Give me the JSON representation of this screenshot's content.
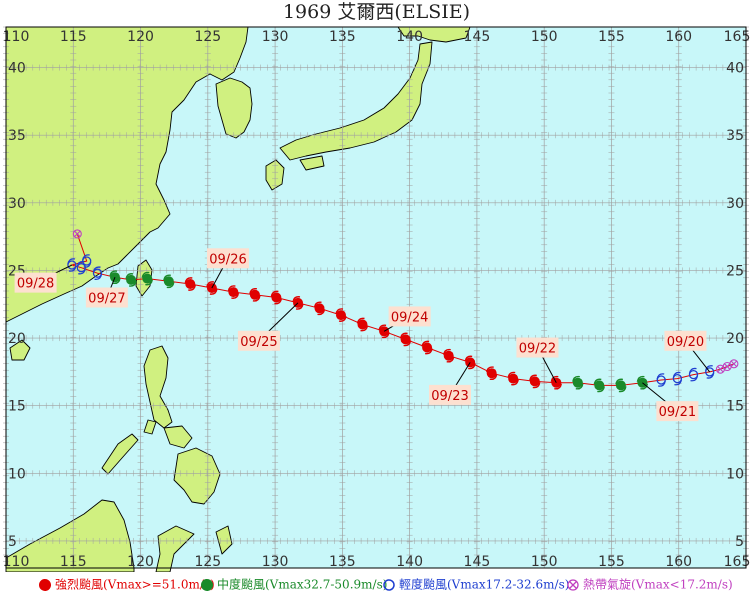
{
  "title": "1969 艾爾西(ELSIE)",
  "map": {
    "lon_range": [
      110,
      165
    ],
    "lat_range": [
      3,
      43
    ],
    "lon_ticks": [
      110,
      115,
      120,
      125,
      130,
      135,
      140,
      145,
      150,
      155,
      160,
      165
    ],
    "lat_ticks": [
      5,
      10,
      15,
      20,
      25,
      30,
      35,
      40
    ],
    "ocean_color": "#c8f7f9",
    "land_color": "#d0f080",
    "grid_color": "#a0a0a0",
    "track_color": "#e00000"
  },
  "track": [
    {
      "lon": 164.1,
      "lat": 18.1,
      "cat": "td"
    },
    {
      "lon": 163.6,
      "lat": 17.9,
      "cat": "td"
    },
    {
      "lon": 163.1,
      "lat": 17.7,
      "cat": "td"
    },
    {
      "lon": 162.3,
      "lat": 17.5,
      "cat": "ts"
    },
    {
      "lon": 161.1,
      "lat": 17.3,
      "cat": "ts"
    },
    {
      "lon": 159.9,
      "lat": 17.0,
      "cat": "ts"
    },
    {
      "lon": 158.7,
      "lat": 16.9,
      "cat": "ts"
    },
    {
      "lon": 157.3,
      "lat": 16.7,
      "cat": "sts"
    },
    {
      "lon": 155.7,
      "lat": 16.5,
      "cat": "sts"
    },
    {
      "lon": 154.1,
      "lat": 16.5,
      "cat": "sts"
    },
    {
      "lon": 152.5,
      "lat": 16.7,
      "cat": "sts"
    },
    {
      "lon": 150.9,
      "lat": 16.7,
      "cat": "ty"
    },
    {
      "lon": 149.3,
      "lat": 16.8,
      "cat": "ty"
    },
    {
      "lon": 147.7,
      "lat": 17.0,
      "cat": "ty"
    },
    {
      "lon": 146.1,
      "lat": 17.4,
      "cat": "ty"
    },
    {
      "lon": 144.5,
      "lat": 18.2,
      "cat": "ty"
    },
    {
      "lon": 142.9,
      "lat": 18.7,
      "cat": "ty"
    },
    {
      "lon": 141.3,
      "lat": 19.3,
      "cat": "ty"
    },
    {
      "lon": 139.7,
      "lat": 19.9,
      "cat": "ty"
    },
    {
      "lon": 138.1,
      "lat": 20.5,
      "cat": "ty"
    },
    {
      "lon": 136.5,
      "lat": 21.0,
      "cat": "ty"
    },
    {
      "lon": 134.9,
      "lat": 21.7,
      "cat": "ty"
    },
    {
      "lon": 133.3,
      "lat": 22.2,
      "cat": "ty"
    },
    {
      "lon": 131.7,
      "lat": 22.6,
      "cat": "ty"
    },
    {
      "lon": 130.1,
      "lat": 23.0,
      "cat": "ty"
    },
    {
      "lon": 128.5,
      "lat": 23.2,
      "cat": "ty"
    },
    {
      "lon": 126.9,
      "lat": 23.4,
      "cat": "ty"
    },
    {
      "lon": 125.3,
      "lat": 23.7,
      "cat": "ty"
    },
    {
      "lon": 123.7,
      "lat": 24.0,
      "cat": "ty"
    },
    {
      "lon": 122.1,
      "lat": 24.2,
      "cat": "sts"
    },
    {
      "lon": 120.5,
      "lat": 24.4,
      "cat": "sts"
    },
    {
      "lon": 119.3,
      "lat": 24.3,
      "cat": "sts"
    },
    {
      "lon": 118.1,
      "lat": 24.5,
      "cat": "sts"
    },
    {
      "lon": 116.8,
      "lat": 24.8,
      "cat": "ts"
    },
    {
      "lon": 115.6,
      "lat": 25.2,
      "cat": "ts"
    },
    {
      "lon": 114.9,
      "lat": 25.4,
      "cat": "ts"
    },
    {
      "lon": 116.0,
      "lat": 25.7,
      "cat": "ts"
    },
    {
      "lon": 115.3,
      "lat": 27.7,
      "cat": "td"
    }
  ],
  "date_labels": [
    {
      "text": "09/20",
      "lon": 160.5,
      "lat": 19.8,
      "lead": [
        162.3,
        17.5
      ]
    },
    {
      "text": "09/21",
      "lon": 159.9,
      "lat": 14.6,
      "lead": [
        157.3,
        16.7
      ]
    },
    {
      "text": "09/22",
      "lon": 149.5,
      "lat": 19.3,
      "lead": [
        150.9,
        16.7
      ]
    },
    {
      "text": "09/23",
      "lon": 143.0,
      "lat": 15.8,
      "lead": [
        144.5,
        18.2
      ]
    },
    {
      "text": "09/24",
      "lon": 140.0,
      "lat": 21.6,
      "lead": [
        138.1,
        20.5
      ]
    },
    {
      "text": "09/25",
      "lon": 128.8,
      "lat": 19.8,
      "lead": [
        131.7,
        22.6
      ]
    },
    {
      "text": "09/26",
      "lon": 126.5,
      "lat": 25.9,
      "lead": [
        125.3,
        23.7
      ]
    },
    {
      "text": "09/27",
      "lon": 117.5,
      "lat": 23.0,
      "lead": [
        118.1,
        24.5
      ]
    },
    {
      "text": "09/28",
      "lon": 112.2,
      "lat": 24.1,
      "lead": [
        114.9,
        25.4
      ]
    }
  ],
  "legend": [
    {
      "cat": "ty",
      "label": "強烈颱風(Vmax>=51.0m/s)",
      "color": "#e00000"
    },
    {
      "cat": "sts",
      "label": "中度颱風(Vmax32.7-50.9m/s)",
      "color": "#1a8a2a"
    },
    {
      "cat": "ts",
      "label": "輕度颱風(Vmax17.2-32.6m/s)",
      "color": "#1f3fd0"
    },
    {
      "cat": "td",
      "label": "熱帶氣旋(Vmax<17.2m/s)",
      "color": "#c040c0"
    }
  ]
}
